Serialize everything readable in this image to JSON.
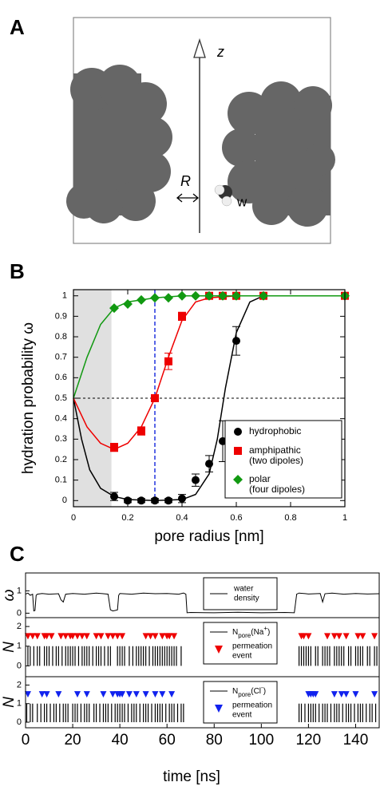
{
  "panel_labels": [
    "A",
    "B",
    "C"
  ],
  "diagram": {
    "axis_label": "z",
    "radius_label": "R",
    "water_label": "w"
  },
  "chart_data": [
    {
      "type": "scatter",
      "xlabel": "pore radius [nm]",
      "ylabel": "hydration probability ω",
      "xlim": [
        0,
        1
      ],
      "ylim": [
        -0.03,
        1.03
      ],
      "xticks": [
        0,
        0.2,
        0.4,
        0.6,
        0.8,
        1
      ],
      "yticks": [
        0,
        0.1,
        0.2,
        0.3,
        0.4,
        0.5,
        0.6,
        0.7,
        0.8,
        0.9,
        1
      ],
      "shaded_xrange": [
        0,
        0.14
      ],
      "vline": 0.3,
      "vline_color": "#2233dd",
      "hline": 0.5,
      "legend": "lower right",
      "series": [
        {
          "name": "hydrophobic",
          "color": "#000000",
          "marker": "circle",
          "x": [
            0.15,
            0.2,
            0.25,
            0.3,
            0.35,
            0.4,
            0.45,
            0.5,
            0.55,
            0.6,
            0.7,
            1
          ],
          "values": [
            0.02,
            0,
            0,
            0,
            0,
            0.01,
            0.1,
            0.18,
            0.29,
            0.78,
            1,
            1
          ],
          "errors": [
            0.02,
            0.01,
            0.01,
            0.01,
            0.01,
            0.02,
            0.03,
            0.04,
            0.1,
            0.07,
            0,
            0
          ]
        },
        {
          "name": "amphipathic",
          "note": "(two dipoles)",
          "color": "#ee0000",
          "marker": "square",
          "x": [
            0.15,
            0.25,
            0.3,
            0.35,
            0.4,
            0.5,
            0.55,
            0.6,
            0.7,
            1
          ],
          "values": [
            0.26,
            0.34,
            0.5,
            0.68,
            0.9,
            1,
            1,
            1,
            1,
            1
          ],
          "errors": [
            0.02,
            0.02,
            0.01,
            0.04,
            0.02,
            0,
            0,
            0,
            0,
            0
          ]
        },
        {
          "name": "polar",
          "note": "(four dipoles)",
          "color": "#119911",
          "marker": "diamond",
          "x": [
            0.15,
            0.2,
            0.25,
            0.3,
            0.35,
            0.4,
            0.45,
            0.5,
            0.55,
            0.6,
            0.7,
            1
          ],
          "values": [
            0.94,
            0.96,
            0.98,
            0.99,
            0.99,
            1,
            1,
            1,
            1,
            1,
            1,
            1
          ]
        }
      ],
      "fits": [
        {
          "color": "#000000",
          "x": [
            0,
            0.03,
            0.06,
            0.1,
            0.15,
            0.2,
            0.3,
            0.4,
            0.45,
            0.5,
            0.53,
            0.56,
            0.6,
            0.65,
            0.7,
            0.8,
            1
          ],
          "values": [
            0.5,
            0.3,
            0.15,
            0.06,
            0.02,
            0.005,
            0,
            0.005,
            0.03,
            0.13,
            0.3,
            0.55,
            0.82,
            0.97,
            1,
            1,
            1
          ]
        },
        {
          "color": "#ee0000",
          "x": [
            0,
            0.05,
            0.1,
            0.15,
            0.2,
            0.25,
            0.3,
            0.35,
            0.4,
            0.45,
            0.5,
            0.6,
            1
          ],
          "values": [
            0.5,
            0.36,
            0.28,
            0.25,
            0.28,
            0.36,
            0.5,
            0.7,
            0.88,
            0.97,
            0.99,
            1,
            1
          ]
        },
        {
          "color": "#119911",
          "x": [
            0,
            0.05,
            0.1,
            0.15,
            0.2,
            0.3,
            0.4,
            1
          ],
          "values": [
            0.5,
            0.7,
            0.86,
            0.94,
            0.97,
            0.99,
            1,
            1
          ]
        }
      ]
    },
    {
      "type": "timeseries",
      "xlabel": "time [ns]",
      "xlim": [
        0,
        150
      ],
      "xticks": [
        0,
        20,
        40,
        60,
        80,
        100,
        120,
        140
      ],
      "panels": [
        {
          "ylabel": "ω",
          "ylim": [
            -0.2,
            1.8
          ],
          "yticks": [
            0,
            1
          ],
          "line_label": [
            "water",
            "density"
          ],
          "x": [
            0,
            1,
            2,
            3,
            3.5,
            4,
            4.5,
            5,
            7,
            10,
            14,
            15,
            16,
            17,
            20,
            25,
            30,
            35,
            36,
            37,
            38,
            39,
            39.5,
            40,
            45,
            50,
            55,
            60,
            65,
            67,
            68,
            68.5,
            70,
            80,
            90,
            100,
            110,
            114,
            115,
            116,
            120,
            125,
            126,
            127,
            130,
            135,
            140,
            145,
            150
          ],
          "values": [
            0.85,
            0.9,
            0.8,
            0.85,
            0.1,
            0.12,
            0.8,
            0.85,
            0.88,
            0.85,
            0.87,
            0.6,
            0.5,
            0.85,
            0.88,
            0.85,
            0.9,
            0.85,
            0.15,
            0.1,
            0.12,
            0.15,
            0.8,
            0.88,
            0.85,
            0.9,
            0.87,
            0.88,
            0.85,
            0.9,
            0.85,
            0.02,
            0.03,
            0.02,
            0.04,
            0.02,
            0.03,
            0.02,
            0.85,
            0.9,
            0.86,
            0.88,
            0.5,
            0.87,
            0.9,
            0.85,
            0.88,
            0.86,
            0.87
          ]
        },
        {
          "ylabel": "N",
          "ylim": [
            -0.55,
            2.45
          ],
          "yticks": [
            0,
            1,
            2
          ],
          "line_label_parts": [
            {
              "text": "N"
            },
            {
              "text": "pore",
              "sub": true
            },
            {
              "text": "(Na"
            },
            {
              "text": "+",
              "sup": true
            },
            {
              "text": ")"
            }
          ],
          "event_label": [
            "permeation",
            "event"
          ],
          "event_color": "#ee0000",
          "event_level": 1.5,
          "spike_value": 1,
          "spikes_x": [
            1,
            2,
            3.5,
            5,
            6,
            8,
            9,
            10,
            11.5,
            13,
            14,
            15.5,
            17,
            18,
            19,
            20,
            21,
            22.5,
            24,
            25,
            26,
            27,
            28.5,
            30,
            31,
            32,
            33.5,
            35,
            36,
            39,
            40,
            41,
            42,
            44,
            45.5,
            47,
            48,
            49,
            50,
            51,
            52.5,
            54,
            55,
            56,
            57,
            58,
            59,
            60,
            61,
            62,
            63,
            64,
            66,
            116,
            117,
            118,
            119,
            120,
            121,
            123,
            124,
            126,
            127,
            128,
            129,
            131,
            132,
            133,
            134,
            135,
            137,
            138,
            140,
            141,
            142,
            143,
            145,
            146,
            148,
            149
          ],
          "events_x": [
            1,
            3,
            5,
            8,
            9,
            11,
            15,
            17,
            19,
            20,
            22,
            24,
            26,
            30,
            32,
            35,
            37,
            39,
            41,
            51,
            53,
            55,
            58,
            60,
            61,
            63,
            117,
            118,
            120,
            128,
            131,
            133,
            136,
            141,
            143,
            148
          ]
        },
        {
          "ylabel": "N",
          "ylim": [
            -0.3,
            2.45
          ],
          "yticks": [
            0,
            1,
            2
          ],
          "line_label_parts": [
            {
              "text": "N"
            },
            {
              "text": "pore",
              "sub": true
            },
            {
              "text": "(Cl"
            },
            {
              "text": "-",
              "sup": true
            },
            {
              "text": ")"
            }
          ],
          "event_label": [
            "permeation",
            "event"
          ],
          "event_color": "#1122ee",
          "event_level": 1.5,
          "spike_value": 1,
          "spikes_x": [
            0.5,
            2,
            3,
            5,
            6.5,
            8,
            9,
            10.5,
            12,
            13,
            14.5,
            16,
            17,
            18,
            20,
            21,
            22,
            23.5,
            25,
            26,
            27,
            29,
            30,
            31.5,
            33,
            34,
            35,
            36.5,
            38,
            39,
            40,
            41,
            42,
            43.5,
            45,
            46,
            47,
            48.5,
            50,
            51,
            52,
            53.5,
            55,
            56,
            57,
            58,
            59.5,
            61,
            62,
            63,
            64.5,
            66,
            67,
            116,
            117,
            118.5,
            120,
            121,
            122,
            123,
            124.5,
            126,
            127,
            128,
            129.5,
            131,
            132,
            133,
            134.5,
            136,
            137,
            138,
            139.5,
            141,
            142,
            143,
            144.5,
            146,
            147,
            148.5
          ],
          "events_x": [
            1,
            7,
            9,
            14,
            22,
            26,
            33,
            37,
            39,
            40,
            41,
            44,
            47,
            51,
            55,
            58,
            62,
            120,
            121,
            122,
            123,
            131,
            134,
            136,
            140,
            148
          ]
        }
      ]
    }
  ]
}
